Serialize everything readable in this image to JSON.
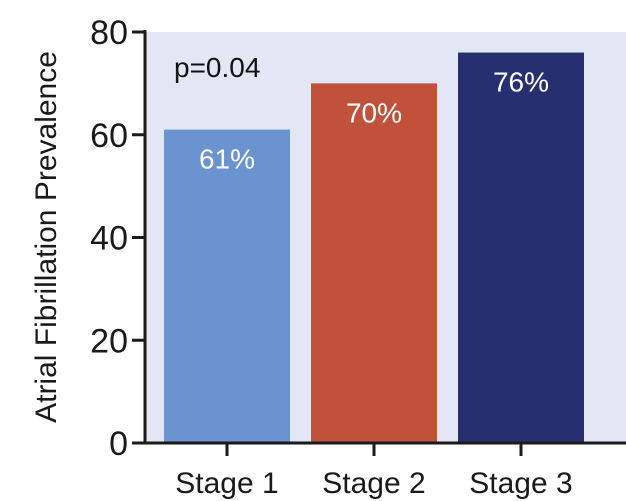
{
  "chart_data": {
    "type": "bar",
    "categories": [
      "Stage 1",
      "Stage 2",
      "Stage 3"
    ],
    "values": [
      61,
      70,
      76
    ],
    "data_labels": [
      "61%",
      "70%",
      "76%"
    ],
    "bar_colors": [
      "#6a93d0",
      "#c0523c",
      "#263070"
    ],
    "plot_background": "#e3e6f5",
    "ylabel": "Atrial Fibrillation Prevalence",
    "ylim": [
      0,
      80
    ],
    "yticks": [
      0,
      20,
      40,
      60,
      80
    ],
    "annotation": "p=0.04",
    "grid": false
  }
}
